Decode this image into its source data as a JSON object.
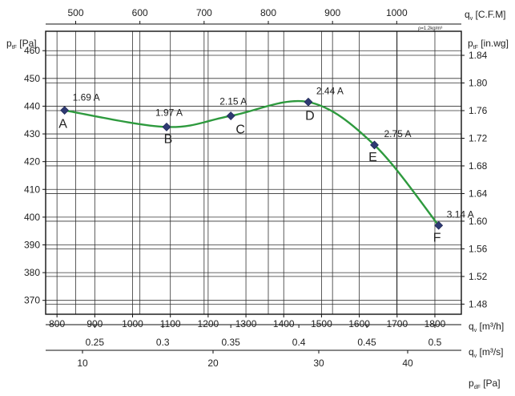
{
  "chart_data": {
    "type": "line",
    "left_axis": {
      "label_main": "p",
      "label_sub": "tF",
      "label_unit": " [Pa]",
      "ticks": [
        370,
        380,
        390,
        400,
        410,
        420,
        430,
        440,
        450,
        460
      ],
      "ylim": [
        365,
        467
      ]
    },
    "right_axis": {
      "label_main": "p",
      "label_sub": "tF",
      "label_unit": " [in.wg]",
      "ticks": [
        "1.48",
        "1.52",
        "1.56",
        "1.60",
        "1.64",
        "1.68",
        "1.72",
        "1.76",
        "1.80",
        "1.84"
      ]
    },
    "top_axis": {
      "label_main": "q",
      "label_sub": "v",
      "label_unit": " [C.F.M]",
      "ticks": [
        500,
        600,
        700,
        800,
        900,
        1000
      ],
      "note": "ρ=1.2kg/m³"
    },
    "bottom_axis": {
      "label_main": "q",
      "label_sub": "v",
      "label_unit": " [m³/h]",
      "ticks": [
        800,
        900,
        1000,
        1100,
        1200,
        1300,
        1400,
        1500,
        1600,
        1700,
        1800
      ],
      "xlim": [
        770,
        1870
      ]
    },
    "axis_ms": {
      "label_main": "q",
      "label_sub": "v",
      "label_unit": " [m³/s]",
      "ticks": [
        "0.25",
        "0.3",
        "0.35",
        "0.4",
        "0.45",
        "0.5"
      ]
    },
    "axis_pdf": {
      "label_main": "p",
      "label_sub": "dF",
      "label_unit": " [Pa]",
      "ticks": [
        "10",
        "20",
        "30",
        "40"
      ]
    },
    "series": [
      {
        "line_color": "#2e9a3e",
        "marker_color": "#2e3a72",
        "points": [
          {
            "letter": "A",
            "current": "1.69 A",
            "x": 820,
            "y": 438.5
          },
          {
            "letter": "B",
            "current": "1.97 A",
            "x": 1090,
            "y": 432.5
          },
          {
            "letter": "C",
            "current": "2.15 A",
            "x": 1260,
            "y": 436.5
          },
          {
            "letter": "D",
            "current": "2.44 A",
            "x": 1465,
            "y": 441.5
          },
          {
            "letter": "E",
            "current": "2.75 A",
            "x": 1640,
            "y": 426
          },
          {
            "letter": "F",
            "current": "3.14 A",
            "x": 1810,
            "y": 397
          }
        ]
      }
    ],
    "grid": true
  }
}
